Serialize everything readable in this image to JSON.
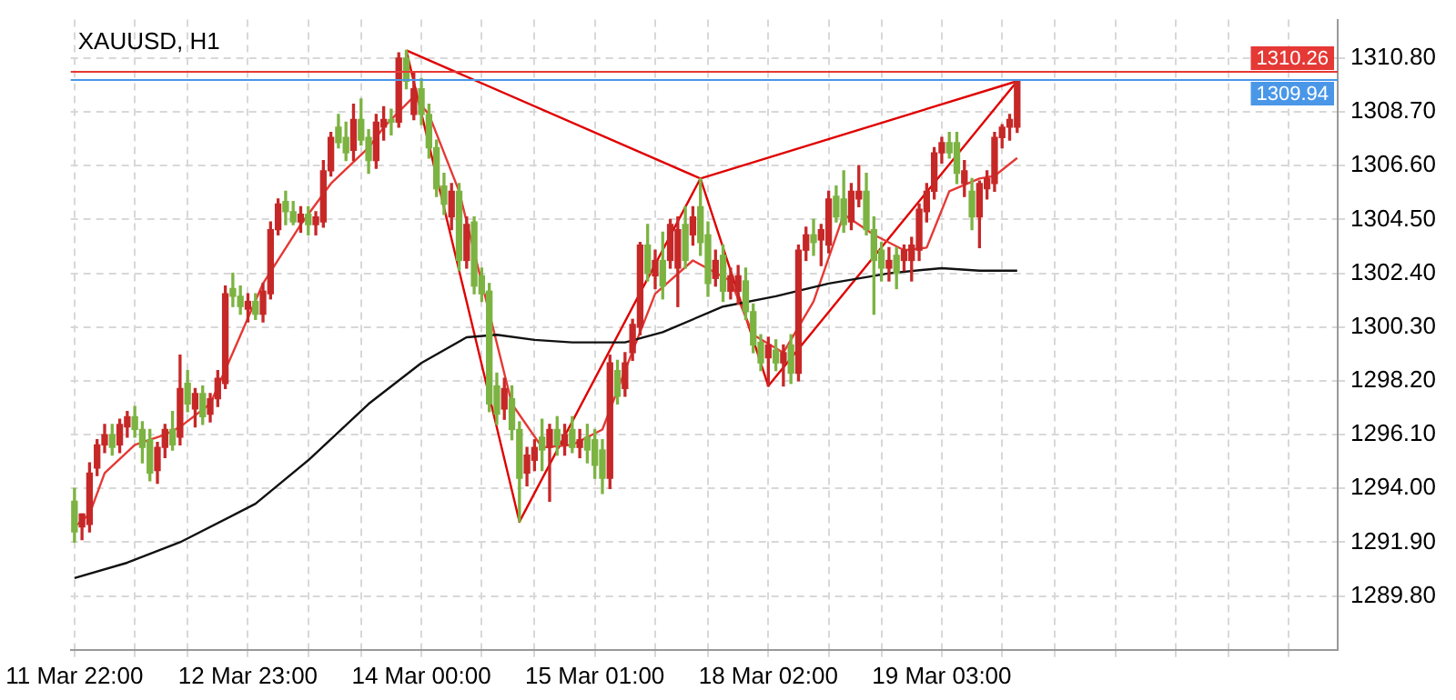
{
  "chart_data": {
    "type": "candlestick",
    "title": "XAUUSD, H1",
    "marker": "none",
    "grid": true,
    "legend": false,
    "categories": [
      "11 Mar 22:00",
      null,
      null,
      null,
      null,
      null,
      null,
      null,
      null,
      null,
      null,
      null,
      null,
      null,
      null,
      null,
      null,
      null,
      null,
      null,
      null,
      null,
      null,
      "12 Mar 23:00",
      null,
      null,
      null,
      null,
      null,
      null,
      null,
      null,
      null,
      null,
      null,
      null,
      null,
      null,
      null,
      null,
      null,
      null,
      null,
      null,
      null,
      null,
      "14 Mar 00:00",
      null,
      null,
      null,
      null,
      null,
      null,
      null,
      null,
      null,
      null,
      null,
      null,
      null,
      null,
      null,
      null,
      null,
      null,
      null,
      null,
      null,
      null,
      "15 Mar 01:00",
      null,
      null,
      null,
      null,
      null,
      null,
      null,
      null,
      null,
      null,
      null,
      null,
      null,
      null,
      null,
      null,
      null,
      null,
      null,
      null,
      null,
      null,
      "18 Mar 02:00",
      null,
      null,
      null,
      null,
      null,
      null,
      null,
      null,
      null,
      null,
      null,
      null,
      null,
      null,
      null,
      null,
      null,
      null,
      null,
      null,
      null,
      null,
      "19 Mar 03:00",
      null,
      null,
      null,
      null,
      null,
      null,
      null,
      null,
      null,
      null,
      null,
      null,
      null,
      null,
      null,
      null,
      null,
      null,
      null,
      null,
      null,
      null,
      null,
      null,
      null,
      null,
      null,
      null,
      null,
      null,
      null,
      null,
      null,
      null,
      null,
      null,
      null,
      null,
      null,
      null,
      null,
      null,
      null,
      null,
      null,
      null,
      null,
      null,
      null,
      null,
      null,
      null
    ],
    "ylim": [
      1287.7,
      1312.3
    ],
    "yticks": [
      {
        "value": 1289.8,
        "label": "1289.80"
      },
      {
        "value": 1291.9,
        "label": "1291.90"
      },
      {
        "value": 1294.0,
        "label": "1294.00"
      },
      {
        "value": 1296.1,
        "label": "1296.10"
      },
      {
        "value": 1298.2,
        "label": "1298.20"
      },
      {
        "value": 1300.3,
        "label": "1300.30"
      },
      {
        "value": 1302.4,
        "label": "1302.40"
      },
      {
        "value": 1304.5,
        "label": "1304.50"
      },
      {
        "value": 1306.6,
        "label": "1306.60"
      },
      {
        "value": 1308.7,
        "label": "1308.70"
      },
      {
        "value": 1310.8,
        "label": "1310.80"
      }
    ],
    "ref_lines": [
      {
        "axis": "y",
        "value": 1310.26,
        "label": "1310.26",
        "color": "#e53935"
      },
      {
        "axis": "y",
        "value": 1309.94,
        "label": "1309.94",
        "color": "#4a97e8"
      }
    ],
    "ohlc": [
      [
        1293.5,
        1294.0,
        1291.9,
        1292.3
      ],
      [
        1292.5,
        1293.0,
        1292.0,
        1293.0
      ],
      [
        1292.6,
        1295.0,
        1292.3,
        1294.6
      ],
      [
        1294.8,
        1295.9,
        1294.5,
        1295.7
      ],
      [
        1295.7,
        1296.5,
        1295.4,
        1296.1
      ],
      [
        1296.1,
        1296.5,
        1295.3,
        1295.6
      ],
      [
        1295.7,
        1296.7,
        1295.4,
        1296.5
      ],
      [
        1296.4,
        1297.0,
        1296.0,
        1296.8
      ],
      [
        1296.8,
        1297.2,
        1296.0,
        1296.3
      ],
      [
        1296.3,
        1296.6,
        1295.0,
        1295.6
      ],
      [
        1295.9,
        1296.3,
        1294.3,
        1294.6
      ],
      [
        1294.7,
        1295.8,
        1294.2,
        1295.6
      ],
      [
        1295.6,
        1296.5,
        1295.2,
        1296.3
      ],
      [
        1296.3,
        1297.0,
        1295.5,
        1295.7
      ],
      [
        1296.0,
        1299.2,
        1295.7,
        1297.9
      ],
      [
        1298.1,
        1298.6,
        1297.0,
        1297.3
      ],
      [
        1297.1,
        1297.9,
        1296.4,
        1297.7
      ],
      [
        1297.7,
        1298.0,
        1296.5,
        1296.8
      ],
      [
        1296.9,
        1297.7,
        1296.6,
        1297.5
      ],
      [
        1297.5,
        1298.6,
        1297.2,
        1298.3
      ],
      [
        1298.1,
        1301.9,
        1297.9,
        1301.6
      ],
      [
        1301.8,
        1302.4,
        1301.1,
        1301.5
      ],
      [
        1301.5,
        1301.9,
        1300.8,
        1301.1
      ],
      [
        1301.0,
        1301.6,
        1300.5,
        1301.3
      ],
      [
        1301.3,
        1301.6,
        1300.6,
        1300.8
      ],
      [
        1300.8,
        1302.0,
        1300.5,
        1301.7
      ],
      [
        1301.6,
        1304.4,
        1301.4,
        1304.1
      ],
      [
        1304.1,
        1305.3,
        1303.9,
        1305.1
      ],
      [
        1305.2,
        1305.6,
        1304.3,
        1304.8
      ],
      [
        1304.8,
        1305.2,
        1304.3,
        1304.4
      ],
      [
        1304.4,
        1305.0,
        1304.0,
        1304.7
      ],
      [
        1304.7,
        1305.0,
        1303.9,
        1304.3
      ],
      [
        1304.3,
        1304.8,
        1303.9,
        1304.6
      ],
      [
        1304.4,
        1306.8,
        1304.2,
        1306.4
      ],
      [
        1306.4,
        1307.9,
        1306.2,
        1307.7
      ],
      [
        1308.1,
        1308.6,
        1307.3,
        1307.5
      ],
      [
        1307.7,
        1308.3,
        1306.8,
        1307.1
      ],
      [
        1307.2,
        1309.0,
        1306.8,
        1308.4
      ],
      [
        1308.4,
        1309.2,
        1307.4,
        1307.6
      ],
      [
        1307.7,
        1308.0,
        1306.3,
        1306.8
      ],
      [
        1306.8,
        1308.6,
        1306.5,
        1308.3
      ],
      [
        1308.1,
        1308.9,
        1307.6,
        1308.4
      ],
      [
        1308.4,
        1308.8,
        1307.8,
        1308.3
      ],
      [
        1308.3,
        1311.0,
        1308.1,
        1310.8
      ],
      [
        1310.8,
        1311.1,
        1309.6,
        1309.9
      ],
      [
        1308.6,
        1310.2,
        1308.4,
        1309.6
      ],
      [
        1309.6,
        1310.0,
        1308.2,
        1308.6
      ],
      [
        1308.6,
        1309.0,
        1306.9,
        1307.3
      ],
      [
        1307.3,
        1307.6,
        1305.4,
        1305.7
      ],
      [
        1305.8,
        1306.3,
        1304.7,
        1305.1
      ],
      [
        1304.6,
        1305.9,
        1304.1,
        1305.6
      ],
      [
        1305.6,
        1305.9,
        1302.5,
        1302.9
      ],
      [
        1302.9,
        1304.6,
        1302.6,
        1304.3
      ],
      [
        1304.4,
        1304.6,
        1301.6,
        1301.9
      ],
      [
        1302.3,
        1302.6,
        1301.3,
        1301.6
      ],
      [
        1301.7,
        1302.0,
        1297.0,
        1297.3
      ],
      [
        1298.0,
        1298.5,
        1296.5,
        1296.9
      ],
      [
        1297.1,
        1298.3,
        1296.7,
        1297.9
      ],
      [
        1297.5,
        1298.0,
        1295.9,
        1296.3
      ],
      [
        1296.3,
        1296.6,
        1292.7,
        1294.4
      ],
      [
        1294.6,
        1295.6,
        1294.1,
        1295.3
      ],
      [
        1295.1,
        1295.9,
        1294.7,
        1295.6
      ],
      [
        1296.0,
        1296.7,
        1294.7,
        1295.5
      ],
      [
        1295.6,
        1296.5,
        1293.5,
        1296.3
      ],
      [
        1296.3,
        1296.8,
        1295.3,
        1295.7
      ],
      [
        1295.7,
        1296.5,
        1295.3,
        1296.1
      ],
      [
        1296.3,
        1296.8,
        1295.4,
        1295.6
      ],
      [
        1295.6,
        1296.3,
        1295.2,
        1295.9
      ],
      [
        1296.0,
        1296.5,
        1295.0,
        1295.5
      ],
      [
        1295.9,
        1296.3,
        1294.4,
        1294.9
      ],
      [
        1295.5,
        1295.9,
        1293.8,
        1294.4
      ],
      [
        1294.4,
        1299.2,
        1294.0,
        1298.9
      ],
      [
        1298.6,
        1299.0,
        1297.3,
        1297.6
      ],
      [
        1297.9,
        1299.3,
        1297.6,
        1298.9
      ],
      [
        1299.3,
        1300.6,
        1299.0,
        1300.4
      ],
      [
        1300.3,
        1303.6,
        1300.0,
        1303.5
      ],
      [
        1303.5,
        1304.3,
        1302.1,
        1302.4
      ],
      [
        1302.3,
        1303.3,
        1301.8,
        1302.9
      ],
      [
        1302.9,
        1304.0,
        1301.4,
        1301.9
      ],
      [
        1302.9,
        1304.5,
        1302.6,
        1304.3
      ],
      [
        1302.6,
        1304.6,
        1301.1,
        1304.1
      ],
      [
        1304.3,
        1305.0,
        1302.6,
        1302.9
      ],
      [
        1303.9,
        1305.0,
        1303.5,
        1304.6
      ],
      [
        1305.0,
        1306.1,
        1303.1,
        1303.6
      ],
      [
        1303.9,
        1304.4,
        1301.5,
        1302.0
      ],
      [
        1302.2,
        1303.3,
        1301.9,
        1302.9
      ],
      [
        1303.1,
        1303.5,
        1301.3,
        1301.7
      ],
      [
        1301.7,
        1302.6,
        1301.4,
        1302.3
      ],
      [
        1301.7,
        1302.7,
        1301.2,
        1302.3
      ],
      [
        1302.1,
        1302.6,
        1300.6,
        1300.9
      ],
      [
        1300.9,
        1301.2,
        1299.3,
        1299.6
      ],
      [
        1299.7,
        1300.0,
        1298.6,
        1298.9
      ],
      [
        1299.1,
        1299.9,
        1298.0,
        1299.6
      ],
      [
        1299.4,
        1299.8,
        1298.6,
        1298.9
      ],
      [
        1298.9,
        1299.6,
        1298.0,
        1299.3
      ],
      [
        1299.6,
        1300.0,
        1298.1,
        1298.5
      ],
      [
        1298.5,
        1303.5,
        1298.2,
        1303.3
      ],
      [
        1303.3,
        1304.2,
        1302.9,
        1303.9
      ],
      [
        1303.9,
        1304.5,
        1303.1,
        1303.6
      ],
      [
        1303.7,
        1304.3,
        1302.7,
        1304.1
      ],
      [
        1303.5,
        1305.6,
        1303.2,
        1305.3
      ],
      [
        1305.4,
        1305.8,
        1304.4,
        1304.6
      ],
      [
        1305.3,
        1306.4,
        1304.0,
        1304.3
      ],
      [
        1304.4,
        1305.9,
        1304.1,
        1305.6
      ],
      [
        1305.3,
        1306.6,
        1305.0,
        1305.6
      ],
      [
        1305.6,
        1306.3,
        1303.9,
        1304.1
      ],
      [
        1304.1,
        1304.6,
        1300.8,
        1302.9
      ],
      [
        1303.3,
        1303.6,
        1302.1,
        1302.6
      ],
      [
        1302.6,
        1303.4,
        1302.1,
        1302.9
      ],
      [
        1303.1,
        1303.4,
        1301.8,
        1302.4
      ],
      [
        1302.9,
        1303.5,
        1302.5,
        1303.3
      ],
      [
        1302.9,
        1303.8,
        1302.1,
        1303.5
      ],
      [
        1303.3,
        1305.1,
        1302.9,
        1304.9
      ],
      [
        1304.8,
        1305.9,
        1304.4,
        1305.6
      ],
      [
        1305.6,
        1307.3,
        1305.3,
        1307.1
      ],
      [
        1307.1,
        1307.7,
        1306.7,
        1307.5
      ],
      [
        1307.5,
        1307.9,
        1306.9,
        1307.1
      ],
      [
        1307.5,
        1307.9,
        1305.9,
        1306.3
      ],
      [
        1305.9,
        1306.8,
        1305.4,
        1306.4
      ],
      [
        1305.6,
        1306.1,
        1304.1,
        1304.6
      ],
      [
        1304.6,
        1306.0,
        1303.4,
        1305.9
      ],
      [
        1305.7,
        1306.4,
        1305.3,
        1306.1
      ],
      [
        1305.9,
        1307.9,
        1305.6,
        1307.7
      ],
      [
        1307.7,
        1308.2,
        1307.3,
        1308.1
      ],
      [
        1308.1,
        1308.6,
        1307.6,
        1308.4
      ],
      [
        1308.1,
        1309.9,
        1307.9,
        1309.9
      ],
      null,
      null,
      null,
      null,
      null,
      null,
      null,
      null,
      null,
      null,
      null,
      null,
      null,
      null,
      null,
      null,
      null,
      null,
      null,
      null,
      null,
      null,
      null,
      null,
      null,
      null,
      null,
      null,
      null,
      null,
      null,
      null,
      null,
      null,
      null,
      null,
      null,
      null,
      null,
      null,
      null,
      null
    ],
    "colors": [
      "#7cb342",
      "#c62828",
      "#c62828",
      "#c62828",
      "#c62828",
      "#7cb342",
      "#c62828",
      "#c62828",
      "#7cb342",
      "#7cb342",
      "#7cb342",
      "#c62828",
      "#c62828",
      "#7cb342",
      "#c62828",
      "#7cb342",
      "#c62828",
      "#7cb342",
      "#c62828",
      "#c62828",
      "#c62828",
      "#7cb342",
      "#7cb342",
      "#c62828",
      "#7cb342",
      "#c62828",
      "#c62828",
      "#c62828",
      "#7cb342",
      "#7cb342",
      "#c62828",
      "#7cb342",
      "#c62828",
      "#c62828",
      "#c62828",
      "#7cb342",
      "#7cb342",
      "#c62828",
      "#7cb342",
      "#7cb342",
      "#c62828",
      "#c62828",
      "#7cb342",
      "#c62828",
      "#7cb342",
      "#c62828",
      "#7cb342",
      "#7cb342",
      "#7cb342",
      "#7cb342",
      "#c62828",
      "#7cb342",
      "#c62828",
      "#7cb342",
      "#7cb342",
      "#7cb342",
      "#7cb342",
      "#c62828",
      "#7cb342",
      "#7cb342",
      "#c62828",
      "#c62828",
      "#7cb342",
      "#c62828",
      "#7cb342",
      "#c62828",
      "#7cb342",
      "#c62828",
      "#7cb342",
      "#7cb342",
      "#7cb342",
      "#c62828",
      "#7cb342",
      "#c62828",
      "#c62828",
      "#c62828",
      "#7cb342",
      "#c62828",
      "#7cb342",
      "#c62828",
      "#c62828",
      "#7cb342",
      "#c62828",
      "#7cb342",
      "#7cb342",
      "#c62828",
      "#7cb342",
      "#c62828",
      "#c62828",
      "#7cb342",
      "#7cb342",
      "#7cb342",
      "#c62828",
      "#7cb342",
      "#c62828",
      "#7cb342",
      "#c62828",
      "#c62828",
      "#7cb342",
      "#c62828",
      "#c62828",
      "#7cb342",
      "#7cb342",
      "#c62828",
      "#c62828",
      "#7cb342",
      "#7cb342",
      "#7cb342",
      "#c62828",
      "#7cb342",
      "#c62828",
      "#c62828",
      "#c62828",
      "#c62828",
      "#c62828",
      "#c62828",
      "#7cb342",
      "#7cb342",
      "#c62828",
      "#7cb342",
      "#c62828",
      "#c62828",
      "#c62828",
      "#c62828",
      "#c62828",
      "#c62828",
      null,
      null,
      null,
      null,
      null,
      null,
      null,
      null,
      null,
      null,
      null,
      null,
      null,
      null,
      null,
      null,
      null,
      null,
      null,
      null,
      null,
      null,
      null,
      null,
      null,
      null,
      null,
      null,
      null,
      null,
      null,
      null,
      null,
      null,
      null,
      null,
      null,
      null,
      null,
      null,
      null,
      null
    ],
    "series": [
      {
        "type": "line",
        "color": "#111111",
        "values": [
          1290.5,
          null,
          null,
          null,
          null,
          null,
          null,
          1291.1,
          null,
          null,
          null,
          null,
          null,
          null,
          1291.9,
          null,
          null,
          null,
          null,
          null,
          null,
          null,
          null,
          null,
          1293.4,
          null,
          null,
          null,
          null,
          null,
          null,
          1295.1,
          null,
          null,
          null,
          null,
          null,
          null,
          null,
          1297.3,
          null,
          null,
          null,
          null,
          null,
          null,
          1298.9,
          null,
          null,
          null,
          null,
          null,
          1299.9,
          null,
          null,
          null,
          1300.0,
          null,
          null,
          null,
          null,
          1299.8,
          null,
          null,
          null,
          null,
          1299.7,
          null,
          null,
          null,
          null,
          null,
          null,
          1299.7,
          null,
          null,
          null,
          null,
          1300.1,
          null,
          null,
          null,
          null,
          null,
          null,
          null,
          1301.1,
          null,
          null,
          null,
          null,
          null,
          null,
          1301.5,
          null,
          null,
          null,
          null,
          null,
          null,
          1302.0,
          null,
          null,
          null,
          null,
          null,
          null,
          null,
          1302.4,
          null,
          null,
          null,
          null,
          null,
          null,
          1302.6,
          null,
          null,
          null,
          null,
          1302.5,
          null,
          null,
          null,
          null,
          1302.5,
          null,
          null,
          null,
          null,
          null,
          null,
          null,
          null,
          null,
          null,
          null,
          null,
          null,
          null,
          null,
          null,
          null,
          null,
          null,
          null,
          null,
          null,
          null,
          null,
          null,
          null,
          null,
          null,
          null,
          null,
          null,
          null,
          null,
          null,
          null,
          null,
          null,
          null,
          null,
          null,
          null,
          null
        ]
      },
      {
        "type": "line",
        "color": "#e53935",
        "values": [
          1292.5,
          null,
          1293.0,
          null,
          1294.6,
          null,
          null,
          null,
          1295.7,
          null,
          null,
          null,
          1296.1,
          null,
          1296.4,
          null,
          null,
          null,
          1297.3,
          null,
          null,
          1299.3,
          null,
          null,
          null,
          1302.0,
          null,
          null,
          null,
          null,
          1304.3,
          null,
          null,
          null,
          1305.9,
          null,
          null,
          null,
          null,
          1307.3,
          null,
          1308.1,
          null,
          null,
          null,
          1309.3,
          null,
          1308.6,
          null,
          null,
          null,
          1305.6,
          null,
          null,
          null,
          null,
          null,
          null,
          1297.3,
          null,
          null,
          null,
          1295.6,
          null,
          null,
          null,
          1295.7,
          null,
          null,
          null,
          1296.3,
          null,
          null,
          1298.6,
          null,
          null,
          null,
          1301.6,
          null,
          null,
          null,
          null,
          1302.9,
          null,
          null,
          null,
          null,
          1302.1,
          null,
          null,
          1300.0,
          null,
          null,
          null,
          1299.3,
          null,
          null,
          null,
          1301.3,
          null,
          null,
          null,
          1304.7,
          null,
          null,
          null,
          1303.9,
          null,
          null,
          null,
          1303.3,
          null,
          null,
          1303.4,
          null,
          null,
          1305.6,
          null,
          null,
          null,
          1306.1,
          null,
          1306.2,
          null,
          null,
          1306.9,
          null,
          null,
          null,
          null,
          null,
          null,
          null,
          null,
          null,
          null,
          null,
          null,
          null,
          null,
          null,
          null,
          null,
          null,
          null,
          null,
          null,
          null,
          null,
          null,
          null,
          null,
          null,
          null,
          null,
          null,
          null,
          null,
          null,
          null,
          null,
          null,
          null,
          null,
          null,
          null,
          null,
          null
        ]
      },
      {
        "type": "line",
        "color": "#e00000",
        "values": [
          null,
          null,
          null,
          null,
          null,
          null,
          null,
          null,
          null,
          null,
          null,
          null,
          null,
          null,
          null,
          null,
          null,
          null,
          null,
          null,
          null,
          null,
          null,
          null,
          null,
          null,
          null,
          null,
          null,
          null,
          null,
          null,
          null,
          null,
          null,
          null,
          null,
          null,
          null,
          null,
          null,
          null,
          null,
          null,
          1311.1,
          null,
          null,
          null,
          null,
          null,
          null,
          null,
          null,
          null,
          null,
          null,
          null,
          null,
          null,
          1292.7,
          null,
          null,
          null,
          null,
          null,
          null,
          null,
          null,
          null,
          null,
          null,
          null,
          null,
          null,
          null,
          null,
          null,
          null,
          null,
          null,
          null,
          null,
          null,
          1306.1,
          null,
          null,
          null,
          null,
          null,
          null,
          null,
          null,
          1298.0,
          null,
          null,
          null,
          null,
          null,
          null,
          null,
          null,
          null,
          null,
          null,
          null,
          null,
          null,
          null,
          null,
          null,
          null,
          null,
          null,
          null,
          null,
          null,
          null,
          null,
          null,
          null,
          null,
          null,
          null,
          null,
          null,
          1309.9,
          null,
          null,
          null,
          null,
          null,
          null,
          null,
          null,
          null,
          null,
          null,
          null,
          null,
          null,
          null,
          null,
          null,
          null,
          null,
          null,
          null,
          null,
          null,
          null,
          null,
          null,
          null,
          null,
          null,
          null,
          null,
          null,
          null,
          null,
          null,
          null,
          null,
          null,
          null,
          null,
          null,
          null
        ]
      },
      {
        "type": "line",
        "color": "#e00000",
        "values": [
          null,
          null,
          null,
          null,
          null,
          null,
          null,
          null,
          null,
          null,
          null,
          null,
          null,
          null,
          null,
          null,
          null,
          null,
          null,
          null,
          null,
          null,
          null,
          null,
          null,
          null,
          null,
          null,
          null,
          null,
          null,
          null,
          null,
          null,
          null,
          null,
          null,
          null,
          null,
          null,
          null,
          null,
          null,
          null,
          1311.1,
          null,
          null,
          null,
          null,
          null,
          null,
          null,
          null,
          null,
          null,
          null,
          null,
          null,
          null,
          null,
          null,
          null,
          null,
          null,
          null,
          null,
          null,
          null,
          null,
          null,
          null,
          null,
          null,
          null,
          null,
          null,
          null,
          null,
          null,
          null,
          null,
          null,
          null,
          1306.1,
          null,
          null,
          null,
          null,
          null,
          null,
          null,
          null,
          null,
          null,
          null,
          null,
          null,
          null,
          null,
          null,
          null,
          null,
          null,
          null,
          null,
          null,
          null,
          null,
          null,
          null,
          null,
          null,
          null,
          null,
          null,
          null,
          null,
          null,
          null,
          null,
          null,
          null,
          null,
          null,
          null,
          1309.9,
          null,
          null,
          null,
          null,
          null,
          null,
          null,
          null,
          null,
          null,
          null,
          null,
          null,
          null,
          null,
          null,
          null,
          null,
          null,
          null,
          null,
          null,
          null,
          null,
          null,
          null,
          null,
          null,
          null,
          null,
          null,
          null,
          null,
          null,
          null,
          null,
          null,
          null,
          null,
          null,
          null,
          null
        ]
      }
    ]
  }
}
